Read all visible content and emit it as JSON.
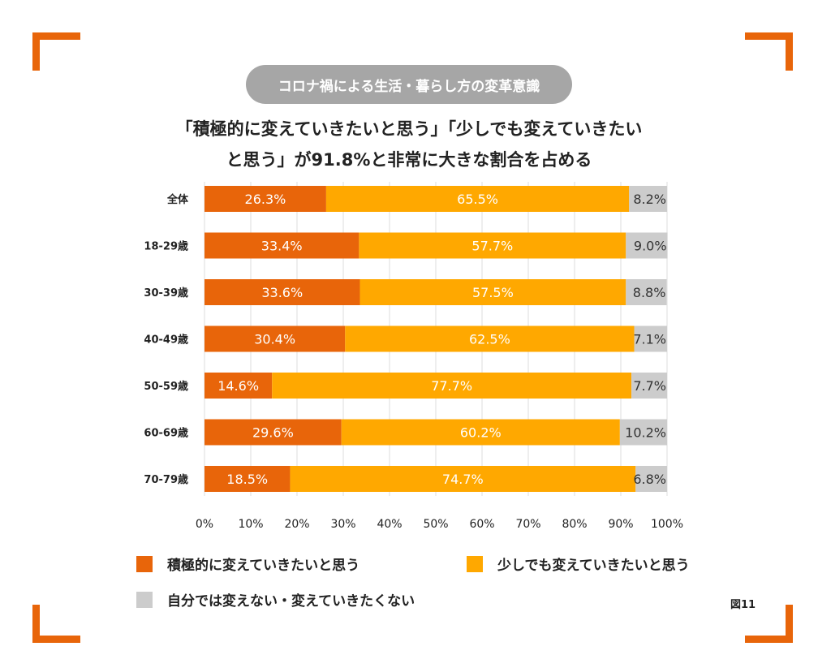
{
  "badge": "コロナ禍による生活・暮らし方の変革意識",
  "title_line1": "「積極的に変えていきたいと思う」「少しでも変えていきたい",
  "title_line2": "と思う」が91.8%と非常に大きな割合を占める",
  "figure_label": "図11",
  "chart_data": {
    "type": "bar",
    "stacked": true,
    "orientation": "horizontal",
    "categories": [
      "全体",
      "18-29歳",
      "30-39歳",
      "40-49歳",
      "50-59歳",
      "60-69歳",
      "70-79歳"
    ],
    "series": [
      {
        "name": "積極的に変えていきたいと思う",
        "color": "#E8650A",
        "values": [
          26.3,
          33.4,
          33.6,
          30.4,
          14.6,
          29.6,
          18.5
        ]
      },
      {
        "name": "少しでも変えていきたいと思う",
        "color": "#FFA800",
        "values": [
          65.5,
          57.7,
          57.5,
          62.5,
          77.7,
          60.2,
          74.7
        ]
      },
      {
        "name": "自分では変えない・変えていきたくない",
        "color": "#CCCCCC",
        "values": [
          8.2,
          9.0,
          8.8,
          7.1,
          7.7,
          10.2,
          6.8
        ]
      }
    ],
    "xlim": [
      0,
      100
    ],
    "xticks": [
      "0%",
      "10%",
      "20%",
      "30%",
      "40%",
      "50%",
      "60%",
      "70%",
      "80%",
      "90%",
      "100%"
    ],
    "grid": true,
    "legend": "bottom"
  }
}
